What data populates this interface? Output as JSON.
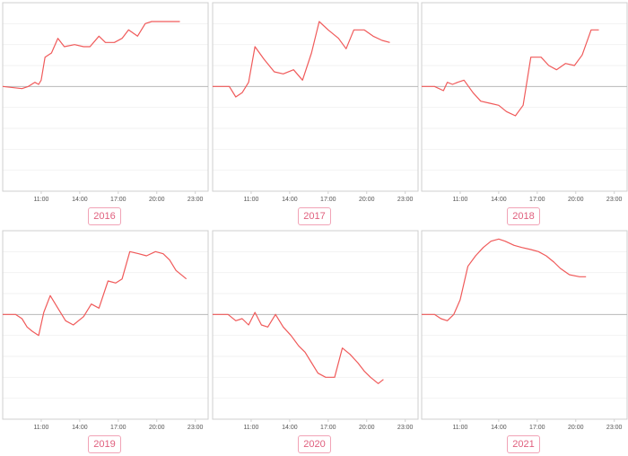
{
  "colors": {
    "line": "#f05a5a",
    "baseline": "#b8b8b8",
    "frame": "#cfcfcf",
    "grid": "#f2f2f2",
    "badge_text": "#e0607e",
    "badge_border": "#f1a3b6"
  },
  "x_tick_labels": [
    "11:00",
    "14:00",
    "17:00",
    "20:00",
    "23:00"
  ],
  "chart_data": [
    {
      "type": "line",
      "title": "2016",
      "xlim": [
        8.0,
        24.0
      ],
      "ylim": [
        -5,
        4
      ],
      "x": [
        8.0,
        9.5,
        10.0,
        10.5,
        10.8,
        11.0,
        11.3,
        11.8,
        12.3,
        12.8,
        13.6,
        14.3,
        14.8,
        15.5,
        16.0,
        16.7,
        17.3,
        17.8,
        18.5,
        19.1,
        19.6,
        20.3,
        21.0,
        21.8
      ],
      "values": [
        0.0,
        -0.1,
        0.0,
        0.2,
        0.1,
        0.3,
        1.4,
        1.6,
        2.3,
        1.9,
        2.0,
        1.9,
        1.9,
        2.4,
        2.1,
        2.1,
        2.3,
        2.7,
        2.4,
        3.0,
        3.1,
        3.1,
        3.1,
        3.1
      ]
    },
    {
      "type": "line",
      "title": "2017",
      "xlim": [
        8.0,
        24.0
      ],
      "ylim": [
        -5,
        4
      ],
      "x": [
        8.0,
        9.3,
        9.8,
        10.3,
        10.8,
        11.3,
        12.0,
        12.8,
        13.5,
        14.3,
        15.0,
        15.7,
        16.3,
        17.0,
        17.8,
        18.4,
        19.0,
        19.8,
        20.5,
        21.2,
        21.8
      ],
      "values": [
        0.0,
        0.0,
        -0.5,
        -0.3,
        0.2,
        1.9,
        1.3,
        0.7,
        0.6,
        0.8,
        0.3,
        1.6,
        3.1,
        2.7,
        2.3,
        1.8,
        2.7,
        2.7,
        2.4,
        2.2,
        2.1
      ]
    },
    {
      "type": "line",
      "title": "2018",
      "xlim": [
        8.0,
        24.0
      ],
      "ylim": [
        -5,
        4
      ],
      "x": [
        8.0,
        9.0,
        9.7,
        10.0,
        10.4,
        10.8,
        11.3,
        12.0,
        12.6,
        13.3,
        14.0,
        14.6,
        15.3,
        15.9,
        16.5,
        17.3,
        17.9,
        18.5,
        19.2,
        19.9,
        20.5,
        21.2,
        21.8
      ],
      "values": [
        0.0,
        0.0,
        -0.2,
        0.2,
        0.1,
        0.2,
        0.3,
        -0.3,
        -0.7,
        -0.8,
        -0.9,
        -1.2,
        -1.4,
        -0.9,
        1.4,
        1.4,
        1.0,
        0.8,
        1.1,
        1.0,
        1.5,
        2.7,
        2.7
      ]
    },
    {
      "type": "line",
      "title": "2019",
      "xlim": [
        8.0,
        24.0
      ],
      "ylim": [
        -5,
        4
      ],
      "x": [
        8.0,
        9.0,
        9.5,
        9.9,
        10.3,
        10.8,
        11.2,
        11.7,
        12.3,
        12.9,
        13.5,
        14.3,
        14.9,
        15.5,
        16.2,
        16.8,
        17.3,
        17.9,
        18.6,
        19.2,
        19.9,
        20.5,
        21.0,
        21.5,
        22.3
      ],
      "values": [
        0.0,
        0.0,
        -0.2,
        -0.6,
        -0.8,
        -1.0,
        0.1,
        0.9,
        0.3,
        -0.3,
        -0.5,
        -0.1,
        0.5,
        0.3,
        1.6,
        1.5,
        1.7,
        3.0,
        2.9,
        2.8,
        3.0,
        2.9,
        2.6,
        2.1,
        1.7
      ]
    },
    {
      "type": "line",
      "title": "2020",
      "xlim": [
        8.0,
        24.0
      ],
      "ylim": [
        -5,
        4
      ],
      "x": [
        8.0,
        9.2,
        9.8,
        10.3,
        10.8,
        11.3,
        11.8,
        12.3,
        12.9,
        13.5,
        14.1,
        14.7,
        15.2,
        15.7,
        16.2,
        16.8,
        17.5,
        18.1,
        18.7,
        19.3,
        19.8,
        20.3,
        20.9,
        21.3
      ],
      "values": [
        0.0,
        0.0,
        -0.3,
        -0.2,
        -0.5,
        0.1,
        -0.5,
        -0.6,
        0.0,
        -0.6,
        -1.0,
        -1.5,
        -1.8,
        -2.3,
        -2.8,
        -3.0,
        -3.0,
        -1.6,
        -1.9,
        -2.3,
        -2.7,
        -3.0,
        -3.3,
        -3.1
      ]
    },
    {
      "type": "line",
      "title": "2021",
      "xlim": [
        8.0,
        24.0
      ],
      "ylim": [
        -5,
        4
      ],
      "x": [
        8.0,
        9.0,
        9.5,
        10.0,
        10.5,
        11.0,
        11.6,
        12.2,
        12.8,
        13.4,
        14.0,
        14.5,
        15.2,
        15.8,
        16.5,
        17.1,
        17.7,
        18.3,
        18.8,
        19.5,
        20.3,
        20.8
      ],
      "values": [
        0.0,
        0.0,
        -0.2,
        -0.3,
        0.0,
        0.7,
        2.3,
        2.8,
        3.2,
        3.5,
        3.6,
        3.5,
        3.3,
        3.2,
        3.1,
        3.0,
        2.8,
        2.5,
        2.2,
        1.9,
        1.8,
        1.8
      ]
    }
  ]
}
